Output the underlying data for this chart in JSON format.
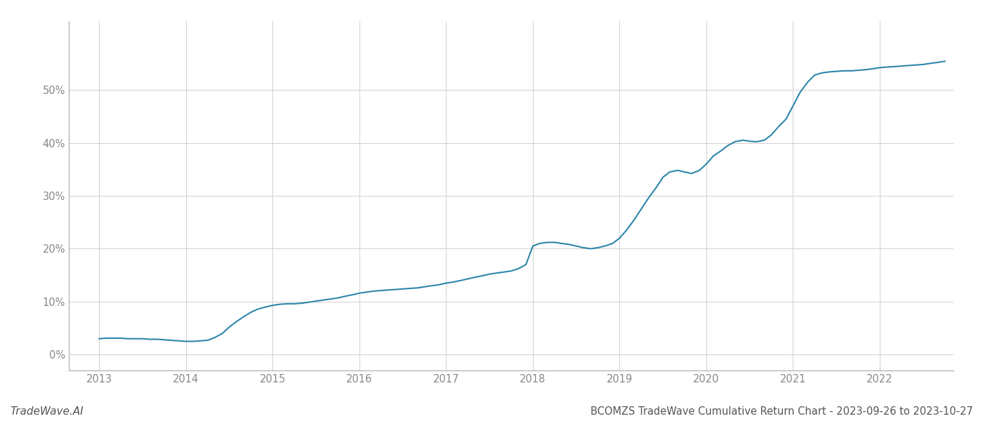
{
  "title_footer": "BCOMZS TradeWave Cumulative Return Chart - 2023-09-26 to 2023-10-27",
  "watermark": "TradeWave.AI",
  "line_color": "#2e86ab",
  "background_color": "#ffffff",
  "grid_color": "#d0d0d0",
  "x_years": [
    2013,
    2014,
    2015,
    2016,
    2017,
    2018,
    2019,
    2020,
    2021,
    2022
  ],
  "x_values": [
    2013.0,
    2013.08,
    2013.17,
    2013.25,
    2013.33,
    2013.42,
    2013.5,
    2013.58,
    2013.67,
    2013.75,
    2013.83,
    2013.92,
    2014.0,
    2014.08,
    2014.17,
    2014.25,
    2014.33,
    2014.42,
    2014.5,
    2014.58,
    2014.67,
    2014.75,
    2014.83,
    2014.92,
    2015.0,
    2015.08,
    2015.17,
    2015.25,
    2015.33,
    2015.42,
    2015.5,
    2015.58,
    2015.67,
    2015.75,
    2015.83,
    2015.92,
    2016.0,
    2016.08,
    2016.17,
    2016.25,
    2016.33,
    2016.42,
    2016.5,
    2016.58,
    2016.67,
    2016.75,
    2016.83,
    2016.92,
    2017.0,
    2017.08,
    2017.17,
    2017.25,
    2017.33,
    2017.42,
    2017.5,
    2017.58,
    2017.67,
    2017.75,
    2017.83,
    2017.92,
    2018.0,
    2018.08,
    2018.17,
    2018.25,
    2018.33,
    2018.42,
    2018.5,
    2018.58,
    2018.67,
    2018.75,
    2018.83,
    2018.92,
    2019.0,
    2019.08,
    2019.17,
    2019.25,
    2019.33,
    2019.42,
    2019.5,
    2019.58,
    2019.67,
    2019.75,
    2019.83,
    2019.92,
    2020.0,
    2020.08,
    2020.17,
    2020.25,
    2020.33,
    2020.42,
    2020.5,
    2020.58,
    2020.67,
    2020.75,
    2020.83,
    2020.92,
    2021.0,
    2021.08,
    2021.17,
    2021.25,
    2021.33,
    2021.42,
    2021.5,
    2021.58,
    2021.67,
    2021.75,
    2021.83,
    2021.92,
    2022.0,
    2022.08,
    2022.17,
    2022.25,
    2022.33,
    2022.42,
    2022.5,
    2022.58,
    2022.67,
    2022.75
  ],
  "y_values": [
    3.0,
    3.1,
    3.1,
    3.1,
    3.0,
    3.0,
    3.0,
    2.9,
    2.9,
    2.8,
    2.7,
    2.6,
    2.5,
    2.5,
    2.6,
    2.7,
    3.2,
    4.0,
    5.2,
    6.2,
    7.2,
    8.0,
    8.6,
    9.0,
    9.3,
    9.5,
    9.6,
    9.6,
    9.7,
    9.9,
    10.1,
    10.3,
    10.5,
    10.7,
    11.0,
    11.3,
    11.6,
    11.8,
    12.0,
    12.1,
    12.2,
    12.3,
    12.4,
    12.5,
    12.6,
    12.8,
    13.0,
    13.2,
    13.5,
    13.7,
    14.0,
    14.3,
    14.6,
    14.9,
    15.2,
    15.4,
    15.6,
    15.8,
    16.2,
    17.0,
    20.5,
    21.0,
    21.2,
    21.2,
    21.0,
    20.8,
    20.5,
    20.2,
    20.0,
    20.2,
    20.5,
    21.0,
    22.0,
    23.5,
    25.5,
    27.5,
    29.5,
    31.5,
    33.5,
    34.5,
    34.8,
    34.5,
    34.2,
    34.8,
    36.0,
    37.5,
    38.5,
    39.5,
    40.2,
    40.5,
    40.3,
    40.2,
    40.5,
    41.5,
    43.0,
    44.5,
    47.0,
    49.5,
    51.5,
    52.8,
    53.2,
    53.4,
    53.5,
    53.6,
    53.6,
    53.7,
    53.8,
    54.0,
    54.2,
    54.3,
    54.4,
    54.5,
    54.6,
    54.7,
    54.8,
    55.0,
    55.2,
    55.4
  ],
  "yticks": [
    0,
    10,
    20,
    30,
    40,
    50
  ],
  "ylim": [
    -3,
    63
  ],
  "xlim": [
    2012.65,
    2022.85
  ],
  "footer_fontsize": 10.5,
  "watermark_fontsize": 11,
  "tick_color": "#888888",
  "spine_color": "#aaaaaa"
}
